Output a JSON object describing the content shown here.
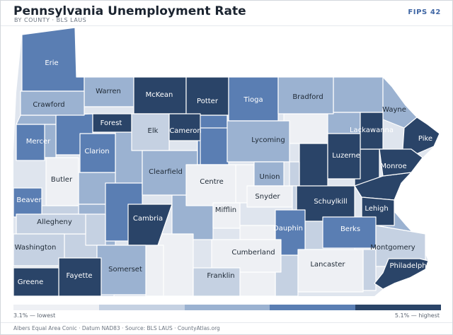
{
  "header": {
    "title": "Pennsylvania Unemployment Rate",
    "subtitle": "BY COUNTY · BLS LAUS",
    "badge": "FIPS 42"
  },
  "colors": {
    "c1": "#eef0f4",
    "c2": "#c5d1e2",
    "c3": "#9bb2d1",
    "c4": "#5a7eb3",
    "c5": "#2a4468"
  },
  "counties": [
    {
      "name": "Erie",
      "class": 4
    },
    {
      "name": "Warren",
      "class": 3
    },
    {
      "name": "McKean",
      "class": 5
    },
    {
      "name": "Potter",
      "class": 5
    },
    {
      "name": "Tioga",
      "class": 4
    },
    {
      "name": "Bradford",
      "class": 3
    },
    {
      "name": "Crawford",
      "class": 3
    },
    {
      "name": "Forest",
      "class": 5
    },
    {
      "name": "Elk",
      "class": 2
    },
    {
      "name": "Cameron",
      "class": 5
    },
    {
      "name": "Lycoming",
      "class": 3
    },
    {
      "name": "Wayne",
      "class": 3
    },
    {
      "name": "Lackawanna",
      "class": 5
    },
    {
      "name": "Pike",
      "class": 5
    },
    {
      "name": "Mercer",
      "class": 4
    },
    {
      "name": "Clarion",
      "class": 4
    },
    {
      "name": "Luzerne",
      "class": 5
    },
    {
      "name": "Monroe",
      "class": 5
    },
    {
      "name": "Butler",
      "class": 1
    },
    {
      "name": "Clearfield",
      "class": 3
    },
    {
      "name": "Centre",
      "class": 1
    },
    {
      "name": "Union",
      "class": 3
    },
    {
      "name": "Snyder",
      "class": 1
    },
    {
      "name": "Beaver",
      "class": 4
    },
    {
      "name": "Schuylkill",
      "class": 5
    },
    {
      "name": "Lehigh",
      "class": 5
    },
    {
      "name": "Mifflin",
      "class": 1
    },
    {
      "name": "Allegheny",
      "class": 2
    },
    {
      "name": "Cambria",
      "class": 5
    },
    {
      "name": "Dauphin",
      "class": 4
    },
    {
      "name": "Berks",
      "class": 4
    },
    {
      "name": "Washington",
      "class": 2
    },
    {
      "name": "Montgomery",
      "class": 2
    },
    {
      "name": "Cumberland",
      "class": 1
    },
    {
      "name": "Somerset",
      "class": 3
    },
    {
      "name": "Lancaster",
      "class": 1
    },
    {
      "name": "Fayette",
      "class": 5
    },
    {
      "name": "Philadelphia",
      "class": 5
    },
    {
      "name": "Greene",
      "class": 5
    },
    {
      "name": "Franklin",
      "class": 2
    }
  ],
  "legend": {
    "low_label": "3.1% — lowest",
    "high_label": "5.1% — highest"
  },
  "footer": {
    "text": "Albers Equal Area Conic · Datum NAD83 · Source: BLS LAUS · CountyAtlas.org"
  }
}
